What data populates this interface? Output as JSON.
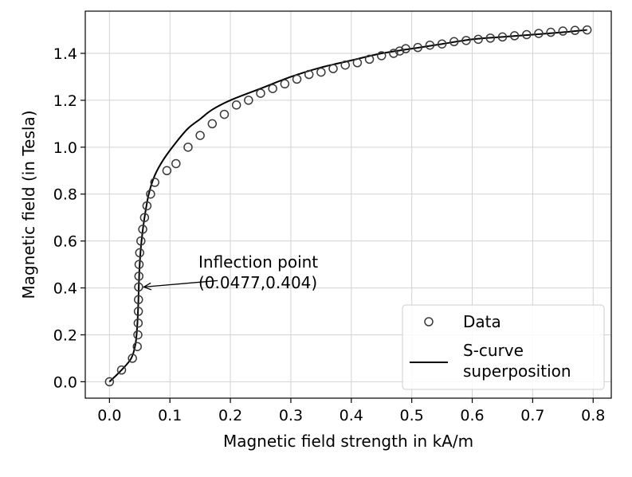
{
  "chart_data": {
    "type": "scatter",
    "title": "",
    "xlabel": "Magnetic field strength in kA/m",
    "ylabel": "Magnetic field (in Tesla)",
    "xlim": [
      -0.04,
      0.83
    ],
    "ylim": [
      -0.07,
      1.58
    ],
    "grid": true,
    "xticks": [
      0.0,
      0.1,
      0.2,
      0.3,
      0.4,
      0.5,
      0.6,
      0.7,
      0.8
    ],
    "xtick_labels": [
      "0.0",
      "0.1",
      "0.2",
      "0.3",
      "0.4",
      "0.5",
      "0.6",
      "0.7",
      "0.8"
    ],
    "yticks": [
      0.0,
      0.2,
      0.4,
      0.6,
      0.8,
      1.0,
      1.2,
      1.4
    ],
    "ytick_labels": [
      "0.0",
      "0.2",
      "0.4",
      "0.6",
      "0.8",
      "1.0",
      "1.2",
      "1.4"
    ],
    "legend_position": "lower-right",
    "series": [
      {
        "name": "Data",
        "kind": "scatter",
        "marker": "open-circle",
        "x": [
          0.0,
          0.02,
          0.038,
          0.046,
          0.047,
          0.0475,
          0.0478,
          0.048,
          0.0483,
          0.0487,
          0.049,
          0.05,
          0.052,
          0.055,
          0.058,
          0.062,
          0.068,
          0.075,
          0.095,
          0.11,
          0.13,
          0.15,
          0.17,
          0.19,
          0.21,
          0.23,
          0.25,
          0.27,
          0.29,
          0.31,
          0.33,
          0.35,
          0.37,
          0.39,
          0.41,
          0.43,
          0.45,
          0.47,
          0.48,
          0.49,
          0.51,
          0.53,
          0.55,
          0.57,
          0.59,
          0.61,
          0.63,
          0.65,
          0.67,
          0.69,
          0.71,
          0.73,
          0.75,
          0.77,
          0.79
        ],
        "y": [
          0.0,
          0.05,
          0.1,
          0.15,
          0.2,
          0.25,
          0.3,
          0.35,
          0.404,
          0.45,
          0.5,
          0.55,
          0.6,
          0.65,
          0.7,
          0.75,
          0.8,
          0.85,
          0.9,
          0.93,
          1.0,
          1.05,
          1.1,
          1.14,
          1.18,
          1.2,
          1.23,
          1.25,
          1.27,
          1.29,
          1.31,
          1.32,
          1.335,
          1.35,
          1.36,
          1.375,
          1.39,
          1.4,
          1.41,
          1.42,
          1.425,
          1.435,
          1.44,
          1.45,
          1.455,
          1.46,
          1.465,
          1.47,
          1.475,
          1.48,
          1.485,
          1.49,
          1.495,
          1.498,
          1.5
        ]
      },
      {
        "name": "S-curve superposition",
        "kind": "line",
        "color": "#000000",
        "x": [
          0.0,
          0.02,
          0.036,
          0.043,
          0.046,
          0.0475,
          0.0485,
          0.05,
          0.053,
          0.058,
          0.065,
          0.075,
          0.09,
          0.11,
          0.13,
          0.15,
          0.17,
          0.2,
          0.25,
          0.3,
          0.35,
          0.4,
          0.45,
          0.5,
          0.55,
          0.6,
          0.65,
          0.7,
          0.75,
          0.79
        ],
        "y": [
          0.0,
          0.05,
          0.1,
          0.16,
          0.24,
          0.32,
          0.404,
          0.5,
          0.6,
          0.7,
          0.8,
          0.88,
          0.95,
          1.02,
          1.08,
          1.12,
          1.16,
          1.2,
          1.25,
          1.3,
          1.34,
          1.37,
          1.4,
          1.42,
          1.44,
          1.46,
          1.47,
          1.48,
          1.49,
          1.5
        ]
      }
    ],
    "annotation": {
      "line1": "Inflection point",
      "line2": "(0.0477,0.404)",
      "point": [
        0.0477,
        0.404
      ],
      "text_at": [
        0.15,
        0.404
      ]
    },
    "colors": {
      "marker_edge": "#3a3a3a",
      "line": "#000000",
      "grid": "#d3d3d3",
      "legend_border": "#cccccc"
    }
  }
}
